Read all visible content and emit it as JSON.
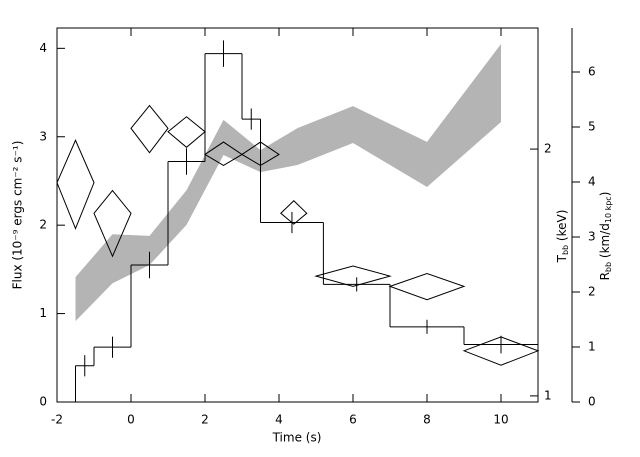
{
  "chart_data": {
    "type": "combo",
    "xlabel": "Time (s)",
    "ylabel": "Flux (10⁻⁹ ergs cm⁻² s⁻¹)",
    "y2label": [
      "T",
      "bb",
      " (keV)"
    ],
    "y3label": [
      "R",
      "bb",
      " (km/d",
      "10 kpc",
      ")"
    ],
    "xlim": [
      -2,
      11
    ],
    "xticks": [
      -2,
      0,
      2,
      4,
      6,
      8,
      10
    ],
    "ylim": [
      0,
      4.23
    ],
    "yticks": [
      0,
      1,
      2,
      3,
      4
    ],
    "y2lim": [
      0.983,
      2.81
    ],
    "y2ticks": [
      1,
      2
    ],
    "y2log": true,
    "y3lim": [
      0,
      6.8
    ],
    "y3ticks": [
      0,
      1,
      2,
      3,
      4,
      5,
      6
    ],
    "series": [
      {
        "type": "band",
        "axis": "y3",
        "color": "#b4b4b4",
        "x": [
          -1.5,
          -0.5,
          0.5,
          1.5,
          2.5,
          3.5,
          4.5,
          6,
          8,
          10
        ],
        "high": [
          2.27,
          3.05,
          3.02,
          3.85,
          5.13,
          4.58,
          4.98,
          5.38,
          4.73,
          6.51
        ],
        "low": [
          1.47,
          2.16,
          2.49,
          3.22,
          4.49,
          4.18,
          4.31,
          4.71,
          3.91,
          5.09
        ]
      },
      {
        "type": "step",
        "axis": "y",
        "color": "#000000",
        "bins": [
          -1.5,
          -1,
          0,
          1,
          2,
          3,
          3.5,
          5.2,
          7,
          9,
          11
        ],
        "values": [
          0.41,
          0.62,
          1.55,
          2.72,
          3.94,
          3.2,
          2.03,
          1.33,
          0.85,
          0.65
        ],
        "errors": [
          0.12,
          0.12,
          0.15,
          0.15,
          0.15,
          0.12,
          0.12,
          0.08,
          0.08,
          0.1
        ]
      },
      {
        "type": "diamond",
        "axis": "y2",
        "color": "#000000",
        "x": [
          -1.5,
          -0.5,
          0.5,
          1.5,
          2.5,
          3.5,
          4.4,
          6,
          8,
          10
        ],
        "xerr": [
          0.5,
          0.5,
          0.5,
          0.5,
          0.5,
          0.5,
          0.35,
          1,
          1,
          1
        ],
        "values": [
          1.82,
          1.67,
          2.12,
          2.1,
          1.97,
          1.97,
          1.67,
          1.4,
          1.36,
          1.135
        ],
        "low": [
          1.6,
          1.48,
          1.98,
          2.01,
          1.91,
          1.91,
          1.62,
          1.36,
          1.31,
          1.09
        ],
        "high": [
          2.05,
          1.78,
          2.26,
          2.19,
          2.04,
          2.04,
          1.73,
          1.44,
          1.41,
          1.18
        ]
      }
    ]
  }
}
